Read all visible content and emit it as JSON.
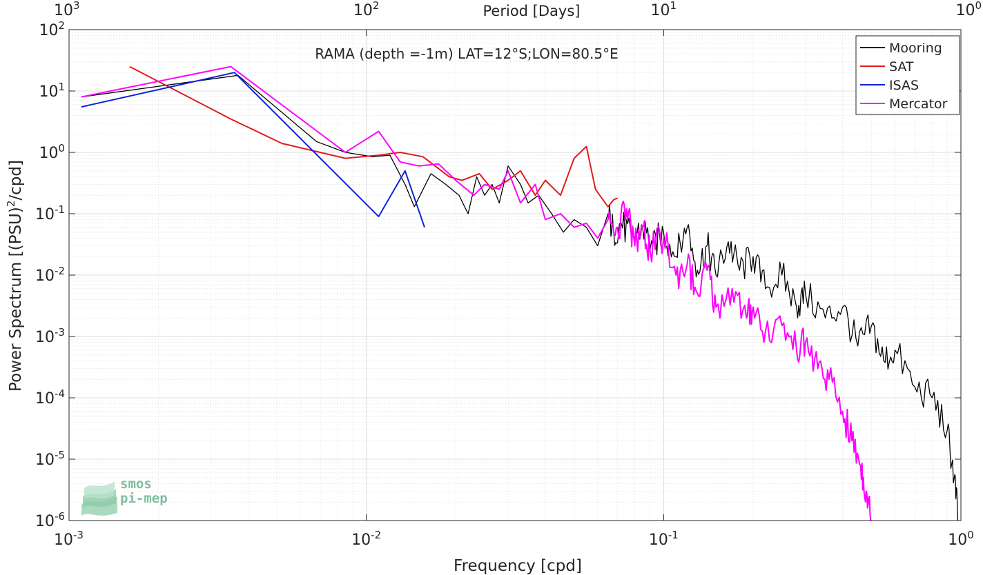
{
  "chart_data": {
    "type": "line",
    "title": "RAMA (depth =-1m) LAT=12°S;LON=80.5°E",
    "xlabel": "Frequency [cpd]",
    "ylabel": "Power Spectrum [(PSU)^2/cpd]",
    "ylabel_parts": {
      "pre": "Power Spectrum [(PSU)",
      "sup": "2",
      "post": "/cpd]"
    },
    "top_xlabel": "Period [Days]",
    "xscale": "log",
    "yscale": "log",
    "xlim": [
      0.001,
      1
    ],
    "ylim": [
      1e-06,
      100
    ],
    "grid": true,
    "legend_position": "top-right",
    "x_ticks": [
      {
        "value": 0.001,
        "base": "10",
        "exp": "-3"
      },
      {
        "value": 0.01,
        "base": "10",
        "exp": "-2"
      },
      {
        "value": 0.1,
        "base": "10",
        "exp": "-1"
      },
      {
        "value": 1,
        "base": "10",
        "exp": "0"
      }
    ],
    "top_ticks": [
      {
        "period": 1000,
        "base": "10",
        "exp": "3"
      },
      {
        "period": 100,
        "base": "10",
        "exp": "2"
      },
      {
        "period": 10,
        "base": "10",
        "exp": "1"
      },
      {
        "period": 1,
        "base": "10",
        "exp": "0"
      }
    ],
    "y_ticks": [
      {
        "value": 100,
        "base": "10",
        "exp": "2"
      },
      {
        "value": 10,
        "base": "10",
        "exp": "1"
      },
      {
        "value": 1,
        "base": "10",
        "exp": "0"
      },
      {
        "value": 0.1,
        "base": "10",
        "exp": "-1"
      },
      {
        "value": 0.01,
        "base": "10",
        "exp": "-2"
      },
      {
        "value": 0.001,
        "base": "10",
        "exp": "-3"
      },
      {
        "value": 0.0001,
        "base": "10",
        "exp": "-4"
      },
      {
        "value": 1e-05,
        "base": "10",
        "exp": "-5"
      },
      {
        "value": 1e-06,
        "base": "10",
        "exp": "-6"
      }
    ],
    "series": [
      {
        "name": "Mooring",
        "color": "#000000",
        "x": [
          0.0011,
          0.0037,
          0.0068,
          0.0085,
          0.0105,
          0.012,
          0.0135,
          0.0145,
          0.0165,
          0.0185,
          0.0205,
          0.022,
          0.0235,
          0.025,
          0.0265,
          0.028,
          0.03,
          0.033,
          0.035,
          0.038,
          0.042,
          0.046,
          0.05,
          0.055,
          0.06,
          0.065,
          0.068,
          0.072,
          0.078,
          0.085,
          0.092,
          0.1,
          0.11,
          0.12,
          0.13,
          0.14,
          0.15,
          0.165,
          0.18,
          0.2,
          0.22,
          0.25,
          0.28,
          0.3,
          0.35,
          0.4,
          0.45,
          0.5,
          0.55,
          0.6,
          0.7,
          0.8,
          0.9,
          0.95,
          0.98
        ],
        "y": [
          8,
          18,
          1.5,
          1.0,
          0.85,
          0.9,
          0.3,
          0.13,
          0.45,
          0.3,
          0.2,
          0.1,
          0.4,
          0.2,
          0.3,
          0.15,
          0.6,
          0.3,
          0.15,
          0.2,
          0.1,
          0.05,
          0.08,
          0.06,
          0.03,
          0.1,
          0.05,
          0.07,
          0.04,
          0.06,
          0.03,
          0.05,
          0.02,
          0.06,
          0.012,
          0.03,
          0.01,
          0.035,
          0.012,
          0.02,
          0.006,
          0.01,
          0.003,
          0.005,
          0.002,
          0.003,
          0.0007,
          0.0015,
          0.0004,
          0.0006,
          0.00015,
          0.0001,
          3e-05,
          5e-06,
          1e-06
        ]
      },
      {
        "name": "SAT",
        "color": "#e31a1c",
        "x": [
          0.0016,
          0.0035,
          0.0052,
          0.0085,
          0.011,
          0.013,
          0.0155,
          0.019,
          0.021,
          0.024,
          0.0265,
          0.03,
          0.033,
          0.037,
          0.04,
          0.045,
          0.05,
          0.055,
          0.059,
          0.065,
          0.068,
          0.07
        ],
        "y": [
          25,
          3.5,
          1.4,
          0.8,
          0.9,
          1.0,
          0.85,
          0.4,
          0.35,
          0.45,
          0.25,
          0.35,
          0.5,
          0.2,
          0.35,
          0.2,
          0.8,
          1.25,
          0.25,
          0.13,
          0.17,
          0.18
        ]
      },
      {
        "name": "ISAS",
        "color": "#0a24d6",
        "x": [
          0.0011,
          0.0036,
          0.011,
          0.0135,
          0.0157
        ],
        "y": [
          5.5,
          20,
          0.09,
          0.5,
          0.06
        ]
      },
      {
        "name": "Mercator",
        "color": "#ff00ff",
        "x": [
          0.0011,
          0.0035,
          0.0085,
          0.011,
          0.013,
          0.015,
          0.0175,
          0.02,
          0.023,
          0.025,
          0.028,
          0.03,
          0.033,
          0.037,
          0.04,
          0.045,
          0.05,
          0.055,
          0.06,
          0.065,
          0.07,
          0.075,
          0.08,
          0.085,
          0.09,
          0.1,
          0.11,
          0.12,
          0.13,
          0.14,
          0.15,
          0.17,
          0.19,
          0.2,
          0.22,
          0.25,
          0.28,
          0.3,
          0.33,
          0.36,
          0.4,
          0.43,
          0.46,
          0.48,
          0.5
        ],
        "y": [
          8,
          25,
          1.0,
          2.2,
          0.7,
          0.6,
          0.65,
          0.35,
          0.2,
          0.3,
          0.25,
          0.5,
          0.15,
          0.3,
          0.08,
          0.1,
          0.06,
          0.07,
          0.04,
          0.08,
          0.06,
          0.12,
          0.03,
          0.06,
          0.025,
          0.04,
          0.01,
          0.015,
          0.005,
          0.012,
          0.003,
          0.006,
          0.002,
          0.003,
          0.0012,
          0.0015,
          0.0006,
          0.0008,
          0.0003,
          0.0002,
          6e-05,
          2e-05,
          8e-06,
          3e-06,
          1e-06
        ]
      }
    ]
  },
  "logo": {
    "line1": "smos",
    "line2": "pi-mep",
    "color": "#7fbf9f"
  }
}
